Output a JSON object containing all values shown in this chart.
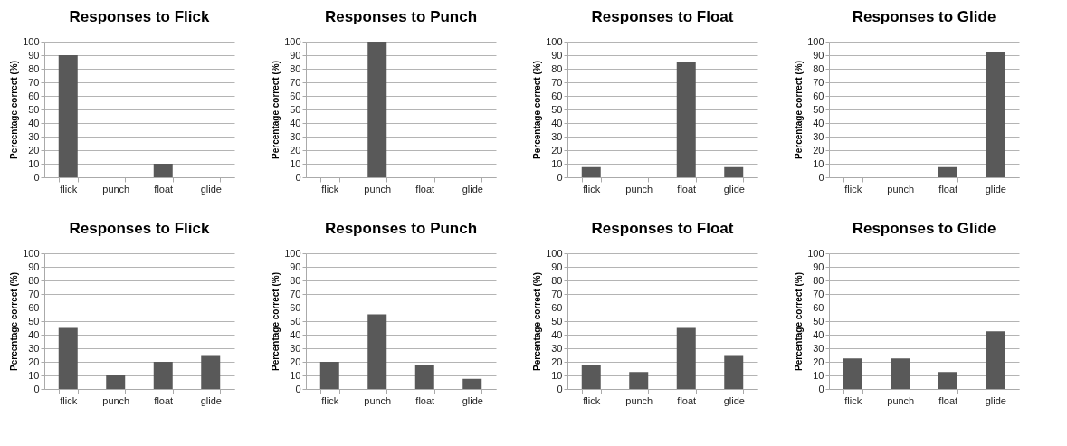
{
  "chart_data": [
    {
      "type": "bar",
      "title": "Responses to Flick",
      "ylabel": "Percentage correct (%)",
      "categories": [
        "flick",
        "punch",
        "float",
        "glide"
      ],
      "values": [
        90,
        0,
        10,
        0
      ],
      "color": "#595959",
      "ylim": [
        0,
        100
      ],
      "yticks": [
        0,
        10,
        20,
        30,
        40,
        50,
        60,
        70,
        80,
        90,
        100
      ],
      "grid": "y"
    },
    {
      "type": "bar",
      "title": "Responses to Punch",
      "ylabel": "Percentage correct (%)",
      "categories": [
        "flick",
        "punch",
        "float",
        "glide"
      ],
      "values": [
        0,
        100,
        0,
        0
      ],
      "color": "#595959",
      "ylim": [
        0,
        100
      ],
      "yticks": [
        0,
        10,
        20,
        30,
        40,
        50,
        60,
        70,
        80,
        90,
        100
      ],
      "grid": "y"
    },
    {
      "type": "bar",
      "title": "Responses to Float",
      "ylabel": "Percentage correct (%)",
      "categories": [
        "flick",
        "punch",
        "float",
        "glide"
      ],
      "values": [
        7.5,
        0,
        85,
        7.5
      ],
      "color": "#595959",
      "ylim": [
        0,
        100
      ],
      "yticks": [
        0,
        10,
        20,
        30,
        40,
        50,
        60,
        70,
        80,
        90,
        100
      ],
      "grid": "y"
    },
    {
      "type": "bar",
      "title": "Responses to Glide",
      "ylabel": "Percentage correct (%)",
      "categories": [
        "flick",
        "punch",
        "float",
        "glide"
      ],
      "values": [
        0,
        0,
        7.5,
        92.5
      ],
      "color": "#595959",
      "ylim": [
        0,
        100
      ],
      "yticks": [
        0,
        10,
        20,
        30,
        40,
        50,
        60,
        70,
        80,
        90,
        100
      ],
      "grid": "y"
    },
    {
      "type": "bar",
      "title": "Responses to Flick",
      "ylabel": "Percentage correct (%)",
      "categories": [
        "flick",
        "punch",
        "float",
        "glide"
      ],
      "values": [
        45,
        10,
        20,
        25
      ],
      "color": "#595959",
      "ylim": [
        0,
        100
      ],
      "yticks": [
        0,
        10,
        20,
        30,
        40,
        50,
        60,
        70,
        80,
        90,
        100
      ],
      "grid": "y"
    },
    {
      "type": "bar",
      "title": "Responses to Punch",
      "ylabel": "Percentage correct (%)",
      "categories": [
        "flick",
        "punch",
        "float",
        "glide"
      ],
      "values": [
        20,
        55,
        17.5,
        7.5
      ],
      "color": "#595959",
      "ylim": [
        0,
        100
      ],
      "yticks": [
        0,
        10,
        20,
        30,
        40,
        50,
        60,
        70,
        80,
        90,
        100
      ],
      "grid": "y"
    },
    {
      "type": "bar",
      "title": "Responses to Float",
      "ylabel": "Percentage correct (%)",
      "categories": [
        "flick",
        "punch",
        "float",
        "glide"
      ],
      "values": [
        17.5,
        12.5,
        45,
        25
      ],
      "color": "#595959",
      "ylim": [
        0,
        100
      ],
      "yticks": [
        0,
        10,
        20,
        30,
        40,
        50,
        60,
        70,
        80,
        90,
        100
      ],
      "grid": "y"
    },
    {
      "type": "bar",
      "title": "Responses to Glide",
      "ylabel": "Percentage correct (%)",
      "categories": [
        "flick",
        "punch",
        "float",
        "glide"
      ],
      "values": [
        22.5,
        22.5,
        12.5,
        42.5
      ],
      "color": "#595959",
      "ylim": [
        0,
        100
      ],
      "yticks": [
        0,
        10,
        20,
        30,
        40,
        50,
        60,
        70,
        80,
        90,
        100
      ],
      "grid": "y"
    }
  ]
}
